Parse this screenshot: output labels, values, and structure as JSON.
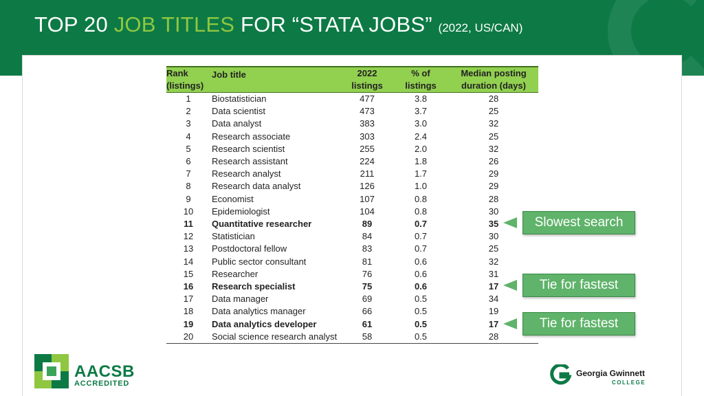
{
  "header": {
    "title_pre": "TOP 20 ",
    "title_accent": "JOB TITLES",
    "title_post": " FOR “STATA JOBS” ",
    "title_sub": "(2022, US/CAN)"
  },
  "table": {
    "columns": [
      [
        "Rank",
        "(listings)"
      ],
      [
        "Job title",
        ""
      ],
      [
        "2022",
        "listings"
      ],
      [
        "% of",
        "listings"
      ],
      [
        "Median posting",
        "duration (days)"
      ]
    ],
    "rows": [
      {
        "rank": "1",
        "title": "Biostatistician",
        "listings": "477",
        "pct": "3.8",
        "days": "28",
        "bold": false
      },
      {
        "rank": "2",
        "title": "Data scientist",
        "listings": "473",
        "pct": "3.7",
        "days": "25",
        "bold": false
      },
      {
        "rank": "3",
        "title": "Data analyst",
        "listings": "383",
        "pct": "3.0",
        "days": "32",
        "bold": false
      },
      {
        "rank": "4",
        "title": "Research associate",
        "listings": "303",
        "pct": "2.4",
        "days": "25",
        "bold": false
      },
      {
        "rank": "5",
        "title": "Research scientist",
        "listings": "255",
        "pct": "2.0",
        "days": "32",
        "bold": false
      },
      {
        "rank": "6",
        "title": "Research assistant",
        "listings": "224",
        "pct": "1.8",
        "days": "26",
        "bold": false
      },
      {
        "rank": "7",
        "title": "Research analyst",
        "listings": "211",
        "pct": "1.7",
        "days": "29",
        "bold": false
      },
      {
        "rank": "8",
        "title": "Research data analyst",
        "listings": "126",
        "pct": "1.0",
        "days": "29",
        "bold": false
      },
      {
        "rank": "9",
        "title": "Economist",
        "listings": "107",
        "pct": "0.8",
        "days": "28",
        "bold": false
      },
      {
        "rank": "10",
        "title": "Epidemiologist",
        "listings": "104",
        "pct": "0.8",
        "days": "30",
        "bold": false
      },
      {
        "rank": "11",
        "title": "Quantitative researcher",
        "listings": "89",
        "pct": "0.7",
        "days": "35",
        "bold": true
      },
      {
        "rank": "12",
        "title": "Statistician",
        "listings": "84",
        "pct": "0.7",
        "days": "30",
        "bold": false
      },
      {
        "rank": "13",
        "title": "Postdoctoral fellow",
        "listings": "83",
        "pct": "0.7",
        "days": "25",
        "bold": false
      },
      {
        "rank": "14",
        "title": "Public sector consultant",
        "listings": "81",
        "pct": "0.6",
        "days": "32",
        "bold": false
      },
      {
        "rank": "15",
        "title": "Researcher",
        "listings": "76",
        "pct": "0.6",
        "days": "31",
        "bold": false
      },
      {
        "rank": "16",
        "title": "Research specialist",
        "listings": "75",
        "pct": "0.6",
        "days": "17",
        "bold": true
      },
      {
        "rank": "17",
        "title": "Data manager",
        "listings": "69",
        "pct": "0.5",
        "days": "34",
        "bold": false
      },
      {
        "rank": "18",
        "title": "Data analytics manager",
        "listings": "66",
        "pct": "0.5",
        "days": "19",
        "bold": false
      },
      {
        "rank": "19",
        "title": "Data analytics developer",
        "listings": "61",
        "pct": "0.5",
        "days": "17",
        "bold": true
      },
      {
        "rank": "20",
        "title": "Social science research analyst",
        "listings": "58",
        "pct": "0.5",
        "days": "28",
        "bold": false
      }
    ]
  },
  "callouts": {
    "slowest": "Slowest search",
    "fastest_1": "Tie for fastest",
    "fastest_2": "Tie for fastest"
  },
  "logos": {
    "aacsb_name": "AACSB",
    "aacsb_sub": "ACCREDITED",
    "college_name": "Georgia Gwinnett",
    "college_sub": "COLLEGE"
  },
  "colors": {
    "brand_green": "#0d7a45",
    "accent_lime": "#8fc741",
    "header_row": "#92d050",
    "callout": "#5fb36a"
  }
}
